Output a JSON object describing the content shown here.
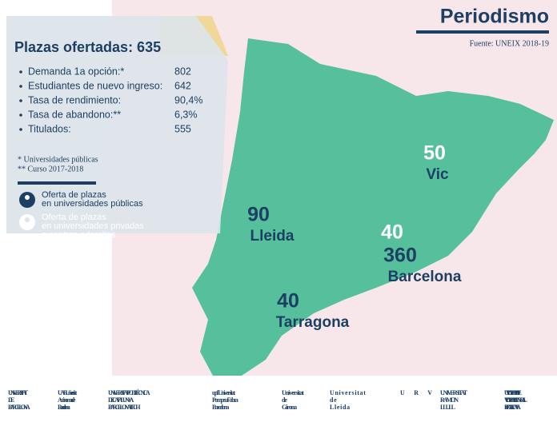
{
  "header": {
    "title": "Periodismo",
    "source": "Fuente: UNEIX 2018-19"
  },
  "panel": {
    "title": "Plazas ofertadas: 635",
    "items": [
      {
        "label": "Demanda 1a opción:*",
        "value": "802"
      },
      {
        "label": "Estudiantes de nuevo ingreso:",
        "value": "642"
      },
      {
        "label": "Tasa de rendimiento:",
        "value": "90,4%"
      },
      {
        "label": "Tasa de abandono:**",
        "value": "6,3%"
      },
      {
        "label": "Titulados:",
        "value": "555"
      }
    ],
    "notes": [
      "* Universidades públicas",
      "** Curso 2017-2018"
    ],
    "legend": [
      {
        "type": "public",
        "label": "Oferta de plazas en universidades públicas"
      },
      {
        "type": "private",
        "label": "Oferta de plazas en universidades privadas o centros adscritos"
      }
    ]
  },
  "colors": {
    "public": "#1d3f63",
    "private": "#ffffff"
  },
  "cities": [
    {
      "name": "Vic",
      "values": [
        {
          "value": "50",
          "type": "private"
        }
      ]
    },
    {
      "name": "Lleida",
      "values": [
        {
          "value": "90",
          "type": "public"
        }
      ]
    },
    {
      "name": "Barcelona",
      "values": [
        {
          "value": "40",
          "type": "private"
        },
        {
          "value": "360",
          "type": "public"
        }
      ]
    },
    {
      "name": "Tarragona",
      "values": [
        {
          "value": "40",
          "type": "public"
        }
      ]
    }
  ],
  "logos": [
    "UNIVERSITAT DE BARCELONA",
    "UAB Universitat Autònoma de Barcelona",
    "UNIVERSITAT POLITÈCNICA DE CATALUNYA BARCELONATECH",
    "upf. Universitat Pompeu Fabra Barcelona",
    "Universitat de Girona",
    "Universitat de Lleida",
    "URV",
    "UNIVERSITAT RAMON LLULL",
    "UVIC UNIVERSITAT DE VIC UNIVERSITAT CENTRAL DE CATALUNYA"
  ]
}
